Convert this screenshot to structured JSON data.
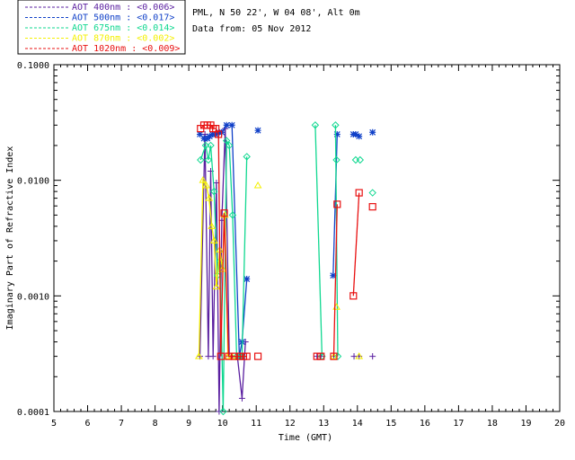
{
  "chart_data": {
    "type": "scatter",
    "title": "",
    "info_line1": "PML, N 50 22', W 04 08', Alt 0m",
    "info_line2": "Data from: 05 Nov 2012",
    "xlabel": "Time (GMT)",
    "ylabel": "Imaginary Part of Refractive Index",
    "xlim": [
      5,
      20
    ],
    "ylim": [
      0.0001,
      0.1
    ],
    "yscale": "log",
    "x_ticks": [
      "5",
      "6",
      "7",
      "8",
      "9",
      "10",
      "11",
      "12",
      "13",
      "14",
      "15",
      "16",
      "17",
      "18",
      "19",
      "20"
    ],
    "y_ticks": [
      {
        "value": 0.0001,
        "label": "0.0001"
      },
      {
        "value": 0.001,
        "label": "0.0010"
      },
      {
        "value": 0.01,
        "label": "0.0100"
      },
      {
        "value": 0.1,
        "label": "0.1000"
      }
    ],
    "legend_position": "top-left, outside",
    "series": [
      {
        "name": "AOT  400nm : <0.006>",
        "color": "#5a1fa0",
        "marker": "plus",
        "segments": [
          [
            [
              9.33,
              0.0003
            ],
            [
              9.48,
              0.025
            ],
            [
              9.58,
              0.0003
            ],
            [
              9.65,
              0.012
            ],
            [
              9.72,
              0.0003
            ],
            [
              9.82,
              0.0095
            ],
            [
              9.9,
              0.0001
            ],
            [
              9.98,
              0.0045
            ],
            [
              10.08,
              0.028
            ],
            [
              10.2,
              0.0003
            ],
            [
              10.3,
              0.0003
            ],
            [
              10.44,
              0.0003
            ],
            [
              10.58,
              0.00013
            ],
            [
              10.68,
              0.0004
            ]
          ]
        ],
        "points": [
          [
            12.8,
            0.0003
          ],
          [
            12.92,
            0.0003
          ],
          [
            13.3,
            0.0003
          ],
          [
            13.9,
            0.0003
          ],
          [
            14.05,
            0.0003
          ],
          [
            14.45,
            0.0003
          ]
        ]
      },
      {
        "name": "AOT  500nm : <0.017>",
        "color": "#1040c8",
        "marker": "asterisk",
        "segments": [
          [
            [
              9.33,
              0.025
            ],
            [
              9.45,
              0.023
            ],
            [
              9.55,
              0.023
            ],
            [
              9.62,
              0.024
            ],
            [
              9.7,
              0.025
            ],
            [
              9.8,
              0.025
            ],
            [
              9.9,
              0.026
            ],
            [
              9.98,
              0.026
            ],
            [
              10.12,
              0.03
            ],
            [
              10.28,
              0.03
            ],
            [
              10.5,
              0.0003
            ],
            [
              10.58,
              0.0004
            ],
            [
              10.72,
              0.0014
            ]
          ],
          [
            [
              13.28,
              0.0015
            ],
            [
              13.4,
              0.025
            ]
          ]
        ],
        "points": [
          [
            11.05,
            0.027
          ],
          [
            13.88,
            0.025
          ],
          [
            13.95,
            0.025
          ],
          [
            14.05,
            0.024
          ],
          [
            14.45,
            0.026
          ]
        ]
      },
      {
        "name": "AOT  675nm : <0.014>",
        "color": "#10d890",
        "marker": "diamond",
        "segments": [
          [
            [
              9.35,
              0.015
            ],
            [
              9.5,
              0.02
            ],
            [
              9.58,
              0.015
            ],
            [
              9.65,
              0.02
            ],
            [
              9.75,
              0.008
            ],
            [
              9.85,
              0.0015
            ],
            [
              9.93,
              0.002
            ],
            [
              10.02,
              0.0001
            ],
            [
              10.12,
              0.022
            ],
            [
              10.2,
              0.02
            ],
            [
              10.3,
              0.005
            ],
            [
              10.42,
              0.0003
            ],
            [
              10.5,
              0.0003
            ],
            [
              10.58,
              0.0003
            ],
            [
              10.72,
              0.016
            ]
          ],
          [
            [
              12.75,
              0.03
            ],
            [
              12.95,
              0.0003
            ]
          ],
          [
            [
              13.35,
              0.03
            ],
            [
              13.42,
              0.0003
            ]
          ]
        ],
        "points": [
          [
            13.38,
            0.015
          ],
          [
            13.95,
            0.015
          ],
          [
            14.08,
            0.015
          ],
          [
            14.45,
            0.0078
          ]
        ]
      },
      {
        "name": "AOT  870nm : <0.002>",
        "color": "#f4f000",
        "marker": "triangle",
        "segments": [
          [
            [
              9.3,
              0.0003
            ],
            [
              9.42,
              0.01
            ],
            [
              9.52,
              0.009
            ],
            [
              9.6,
              0.007
            ],
            [
              9.68,
              0.004
            ],
            [
              9.75,
              0.003
            ],
            [
              9.82,
              0.0012
            ],
            [
              9.92,
              0.0025
            ],
            [
              10.0,
              0.0017
            ],
            [
              10.07,
              0.005
            ],
            [
              10.16,
              0.0003
            ],
            [
              10.28,
              0.0003
            ]
          ]
        ],
        "points": [
          [
            11.05,
            0.009
          ],
          [
            13.38,
            0.0008
          ],
          [
            13.3,
            0.0003
          ],
          [
            14.05,
            0.0003
          ]
        ]
      },
      {
        "name": "AOT 1020nm : <0.009>",
        "color": "#e81010",
        "marker": "square",
        "segments": [
          [
            [
              9.35,
              0.028
            ],
            [
              9.45,
              0.03
            ],
            [
              9.55,
              0.03
            ],
            [
              9.65,
              0.03
            ],
            [
              9.72,
              0.028
            ],
            [
              9.8,
              0.028
            ],
            [
              9.88,
              0.025
            ],
            [
              9.95,
              0.0003
            ],
            [
              10.05,
              0.0052
            ],
            [
              10.18,
              0.0003
            ],
            [
              10.35,
              0.0003
            ],
            [
              10.5,
              0.0003
            ],
            [
              10.62,
              0.0003
            ],
            [
              10.72,
              0.0003
            ]
          ],
          [
            [
              13.3,
              0.0003
            ],
            [
              13.4,
              0.0062
            ]
          ],
          [
            [
              13.88,
              0.001
            ],
            [
              14.05,
              0.0078
            ]
          ]
        ],
        "points": [
          [
            11.05,
            0.0003
          ],
          [
            12.8,
            0.0003
          ],
          [
            12.92,
            0.0003
          ],
          [
            14.45,
            0.0059
          ]
        ]
      }
    ]
  }
}
